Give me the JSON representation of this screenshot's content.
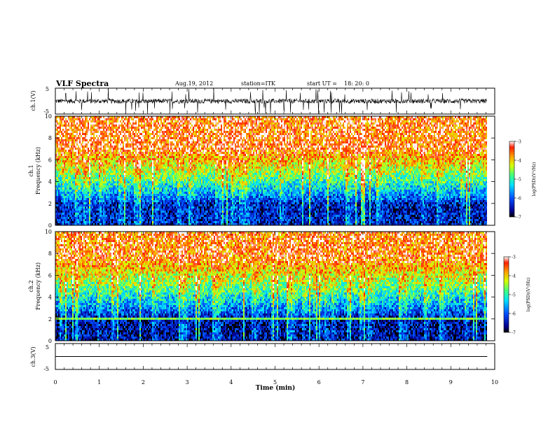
{
  "header": {
    "title": "VLF Spectra",
    "date": "Aug.19, 2012",
    "station": "station=ITK",
    "start_label": "start  UT =",
    "start_time": "18: 20: 0"
  },
  "chart_data": [
    {
      "type": "line",
      "panel": "ch1-waveform",
      "ylabel": "ch.1(V)",
      "ylim": [
        -5,
        5
      ],
      "yticks": [
        "5",
        "-5"
      ],
      "xlim": [
        0,
        10
      ],
      "x_end": 9.83,
      "baseline": 0,
      "noise_amplitude": 1.5,
      "spike_amplitude": 5
    },
    {
      "type": "heatmap",
      "panel": "ch1-spectrogram",
      "ylabel_line1": "ch.1",
      "ylabel_line2": "Frequency  (kHz)",
      "ylim": [
        0,
        10
      ],
      "yticks": [
        "0",
        "2",
        "4",
        "6",
        "8",
        "10"
      ],
      "xlim": [
        0,
        10
      ],
      "x_end": 9.83,
      "colorbar": {
        "ticks": [
          "-3",
          "-4",
          "-5",
          "-6",
          "-7"
        ],
        "range": [
          -7,
          -3
        ],
        "label": "log(PSD)(V²/Hz)"
      },
      "profile": {
        "low_freq_khz": 2.0,
        "high_freq_khz": 7.0,
        "low_level": -6.4,
        "high_level": -3.5
      }
    },
    {
      "type": "heatmap",
      "panel": "ch2-spectrogram",
      "ylabel_line1": "ch.2",
      "ylabel_line2": "Frequency  (kHz)",
      "ylim": [
        0,
        10
      ],
      "yticks": [
        "0",
        "2",
        "4",
        "6",
        "8",
        "10"
      ],
      "xlim": [
        0,
        10
      ],
      "x_end": 9.83,
      "colorbar": {
        "ticks": [
          "-3",
          "-4",
          "-5",
          "-6",
          "-7"
        ],
        "range": [
          -7,
          -3
        ],
        "label": "log(PSD)(V²/Hz)"
      },
      "profile": {
        "low_freq_khz": 2.0,
        "high_freq_khz": 7.5,
        "low_level": -6.6,
        "high_level": -3.6
      },
      "band_khz": 2.0
    },
    {
      "type": "line",
      "panel": "ch3-waveform",
      "ylabel": "ch.3(V)",
      "ylim": [
        -5,
        5
      ],
      "yticks": [
        "5",
        "-5"
      ],
      "xlim": [
        0,
        10
      ],
      "x_end": 9.83,
      "baseline": 0
    }
  ],
  "xaxis": {
    "label": "Time  (min)",
    "ticks": [
      "0",
      "1",
      "2",
      "3",
      "4",
      "5",
      "6",
      "7",
      "8",
      "9",
      "10"
    ]
  }
}
